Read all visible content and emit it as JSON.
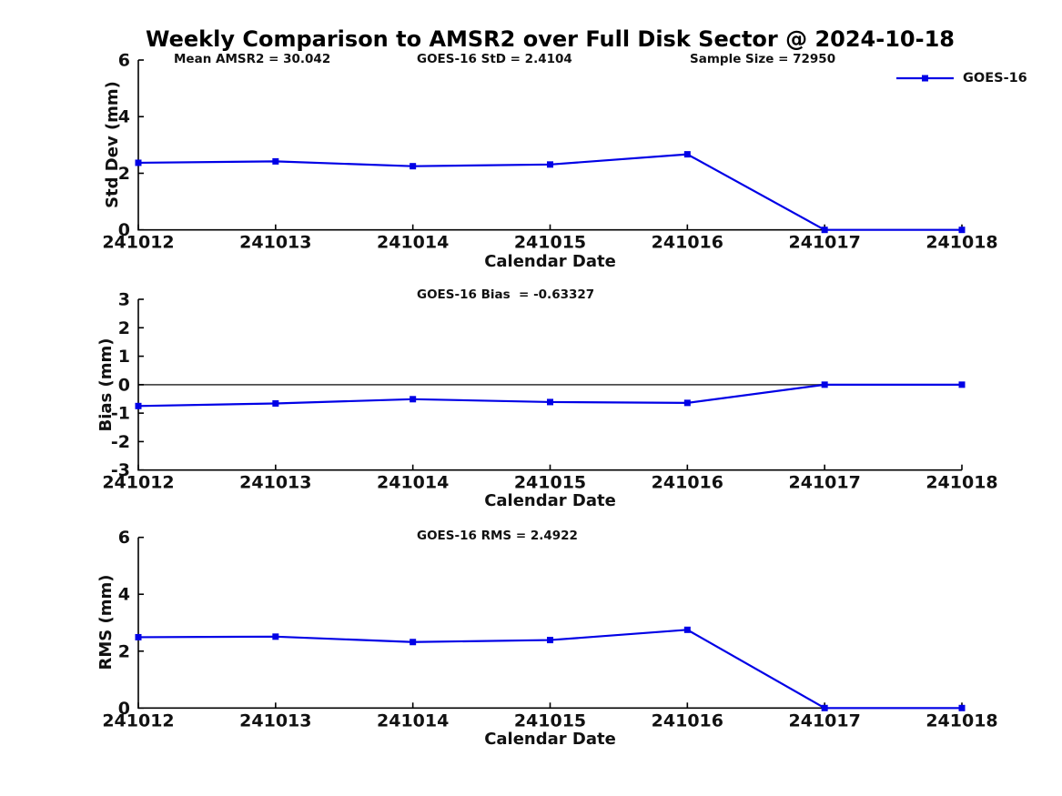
{
  "title": "Weekly Comparison to AMSR2 over Full Disk Sector @ 2024-10-18",
  "legend": {
    "label": "GOES-16"
  },
  "colors": {
    "series_line": "#0000E6",
    "axis": "#000000",
    "zero_line": "#4d4d4d",
    "text": "#111111"
  },
  "chart_data": [
    {
      "type": "line",
      "name": "std-dev",
      "annotations": [
        {
          "text": "Mean AMSR2 = 30.042"
        },
        {
          "text": "GOES-16 StD = 2.4104"
        },
        {
          "text": "Sample Size = 72950"
        }
      ],
      "x_tick_labels": [
        "241012",
        "241013",
        "241014",
        "241015",
        "241016",
        "241017",
        "241018"
      ],
      "xlabel": "Calendar Date",
      "ylabel": "Std Dev (mm)",
      "ylim": [
        0,
        6
      ],
      "yticks": [
        0,
        2,
        4,
        6
      ],
      "legend_position": "top-right",
      "grid": false,
      "series": [
        {
          "name": "GOES-16",
          "marker": "square",
          "values": [
            2.37,
            2.42,
            2.25,
            2.31,
            2.67,
            0.0,
            0.0
          ]
        }
      ]
    },
    {
      "type": "line",
      "name": "bias",
      "annotations": [
        {
          "text": "GOES-16 Bias  = -0.63327"
        }
      ],
      "x_tick_labels": [
        "241012",
        "241013",
        "241014",
        "241015",
        "241016",
        "241017",
        "241018"
      ],
      "xlabel": "Calendar Date",
      "ylabel": "Bias (mm)",
      "ylim": [
        -3,
        3
      ],
      "yticks": [
        -3,
        -2,
        -1,
        0,
        1,
        2,
        3
      ],
      "zero_line": true,
      "grid": false,
      "series": [
        {
          "name": "GOES-16",
          "marker": "square",
          "values": [
            -0.75,
            -0.66,
            -0.51,
            -0.61,
            -0.64,
            0.0,
            0.0
          ]
        }
      ]
    },
    {
      "type": "line",
      "name": "rms",
      "annotations": [
        {
          "text": "GOES-16 RMS = 2.4922"
        }
      ],
      "x_tick_labels": [
        "241012",
        "241013",
        "241014",
        "241015",
        "241016",
        "241017",
        "241018"
      ],
      "xlabel": "Calendar Date",
      "ylabel": "RMS (mm)",
      "ylim": [
        0,
        6
      ],
      "yticks": [
        0,
        2,
        4,
        6
      ],
      "grid": false,
      "series": [
        {
          "name": "GOES-16",
          "marker": "square",
          "values": [
            2.49,
            2.51,
            2.32,
            2.39,
            2.75,
            0.0,
            0.0
          ]
        }
      ]
    }
  ]
}
